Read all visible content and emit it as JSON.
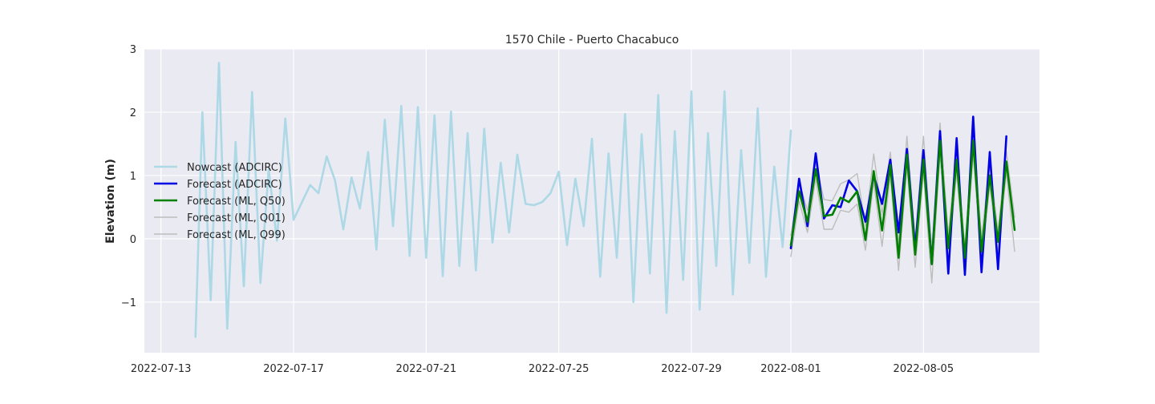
{
  "chart_data": {
    "type": "line",
    "title": "1570 Chile - Puerto Chacabuco",
    "xlabel": "",
    "ylabel": "Elevation (m)",
    "x_axis": {
      "type": "date",
      "min": "2022-07-12T12:00",
      "max": "2022-08-08T12:00",
      "ticks": [
        "2022-07-13",
        "2022-07-17",
        "2022-07-21",
        "2022-07-25",
        "2022-07-29",
        "2022-08-01",
        "2022-08-05"
      ]
    },
    "y_axis": {
      "min": -1.8,
      "max": 3.0,
      "ticks": [
        -1,
        0,
        1,
        2,
        3
      ],
      "tick_labels": [
        "−1",
        "0",
        "1",
        "2",
        "3"
      ]
    },
    "grid": true,
    "background": "#eaeaf2",
    "legend": {
      "position": "center-left"
    },
    "series": [
      {
        "name": "Nowcast (ADCIRC)",
        "color": "#add8e6",
        "width": 2.6,
        "data": [
          [
            "2022-07-14T01:00",
            -1.55
          ],
          [
            "2022-07-14T06:00",
            2.0
          ],
          [
            "2022-07-14T12:00",
            -0.97
          ],
          [
            "2022-07-14T18:00",
            2.78
          ],
          [
            "2022-07-15T00:00",
            -1.42
          ],
          [
            "2022-07-15T06:00",
            1.53
          ],
          [
            "2022-07-15T12:00",
            -0.75
          ],
          [
            "2022-07-15T18:00",
            2.32
          ],
          [
            "2022-07-16T00:00",
            -0.7
          ],
          [
            "2022-07-16T06:00",
            1.1
          ],
          [
            "2022-07-16T12:00",
            -0.03
          ],
          [
            "2022-07-16T18:00",
            1.9
          ],
          [
            "2022-07-17T00:00",
            0.3
          ],
          [
            "2022-07-17T12:00",
            0.85
          ],
          [
            "2022-07-17T18:00",
            0.72
          ],
          [
            "2022-07-18T00:00",
            1.3
          ],
          [
            "2022-07-18T06:00",
            0.92
          ],
          [
            "2022-07-18T12:00",
            0.15
          ],
          [
            "2022-07-18T18:00",
            0.97
          ],
          [
            "2022-07-19T00:00",
            0.48
          ],
          [
            "2022-07-19T06:00",
            1.37
          ],
          [
            "2022-07-19T12:00",
            -0.17
          ],
          [
            "2022-07-19T18:00",
            1.88
          ],
          [
            "2022-07-20T00:00",
            0.2
          ],
          [
            "2022-07-20T06:00",
            2.1
          ],
          [
            "2022-07-20T12:00",
            -0.27
          ],
          [
            "2022-07-20T18:00",
            2.08
          ],
          [
            "2022-07-21T00:00",
            -0.3
          ],
          [
            "2022-07-21T06:00",
            1.95
          ],
          [
            "2022-07-21T12:00",
            -0.59
          ],
          [
            "2022-07-21T18:00",
            2.01
          ],
          [
            "2022-07-22T00:00",
            -0.43
          ],
          [
            "2022-07-22T06:00",
            1.67
          ],
          [
            "2022-07-22T12:00",
            -0.5
          ],
          [
            "2022-07-22T18:00",
            1.74
          ],
          [
            "2022-07-23T00:00",
            -0.06
          ],
          [
            "2022-07-23T06:00",
            1.2
          ],
          [
            "2022-07-23T12:00",
            0.1
          ],
          [
            "2022-07-23T18:00",
            1.33
          ],
          [
            "2022-07-24T00:00",
            0.55
          ],
          [
            "2022-07-24T06:00",
            0.53
          ],
          [
            "2022-07-24T12:00",
            0.58
          ],
          [
            "2022-07-24T18:00",
            0.72
          ],
          [
            "2022-07-25T00:00",
            1.06
          ],
          [
            "2022-07-25T06:00",
            -0.1
          ],
          [
            "2022-07-25T12:00",
            0.95
          ],
          [
            "2022-07-25T18:00",
            0.2
          ],
          [
            "2022-07-26T00:00",
            1.58
          ],
          [
            "2022-07-26T06:00",
            -0.6
          ],
          [
            "2022-07-26T12:00",
            1.35
          ],
          [
            "2022-07-26T18:00",
            -0.3
          ],
          [
            "2022-07-27T00:00",
            1.97
          ],
          [
            "2022-07-27T06:00",
            -1.0
          ],
          [
            "2022-07-27T12:00",
            1.65
          ],
          [
            "2022-07-27T18:00",
            -0.55
          ],
          [
            "2022-07-28T00:00",
            2.27
          ],
          [
            "2022-07-28T06:00",
            -1.17
          ],
          [
            "2022-07-28T12:00",
            1.7
          ],
          [
            "2022-07-28T18:00",
            -0.65
          ],
          [
            "2022-07-29T00:00",
            2.33
          ],
          [
            "2022-07-29T06:00",
            -1.12
          ],
          [
            "2022-07-29T12:00",
            1.67
          ],
          [
            "2022-07-29T18:00",
            -0.43
          ],
          [
            "2022-07-30T00:00",
            2.33
          ],
          [
            "2022-07-30T06:00",
            -0.88
          ],
          [
            "2022-07-30T12:00",
            1.4
          ],
          [
            "2022-07-30T18:00",
            -0.38
          ],
          [
            "2022-07-31T00:00",
            2.06
          ],
          [
            "2022-07-31T06:00",
            -0.6
          ],
          [
            "2022-07-31T12:00",
            1.14
          ],
          [
            "2022-07-31T18:00",
            -0.13
          ],
          [
            "2022-08-01T00:00",
            1.71
          ]
        ]
      },
      {
        "name": "Forecast (ADCIRC)",
        "color": "#0000e6",
        "width": 2.6,
        "data": [
          [
            "2022-08-01T00:00",
            -0.15
          ],
          [
            "2022-08-01T06:00",
            0.95
          ],
          [
            "2022-08-01T12:00",
            0.2
          ],
          [
            "2022-08-01T18:00",
            1.35
          ],
          [
            "2022-08-02T00:00",
            0.32
          ],
          [
            "2022-08-02T06:00",
            0.53
          ],
          [
            "2022-08-02T12:00",
            0.5
          ],
          [
            "2022-08-02T18:00",
            0.92
          ],
          [
            "2022-08-03T00:00",
            0.75
          ],
          [
            "2022-08-03T06:00",
            0.27
          ],
          [
            "2022-08-03T12:00",
            1.0
          ],
          [
            "2022-08-03T18:00",
            0.55
          ],
          [
            "2022-08-04T00:00",
            1.25
          ],
          [
            "2022-08-04T06:00",
            0.1
          ],
          [
            "2022-08-04T12:00",
            1.42
          ],
          [
            "2022-08-04T18:00",
            -0.15
          ],
          [
            "2022-08-05T00:00",
            1.4
          ],
          [
            "2022-08-05T06:00",
            -0.4
          ],
          [
            "2022-08-05T12:00",
            1.7
          ],
          [
            "2022-08-05T18:00",
            -0.55
          ],
          [
            "2022-08-06T00:00",
            1.59
          ],
          [
            "2022-08-06T06:00",
            -0.57
          ],
          [
            "2022-08-06T12:00",
            1.93
          ],
          [
            "2022-08-06T18:00",
            -0.53
          ],
          [
            "2022-08-07T00:00",
            1.37
          ],
          [
            "2022-08-07T06:00",
            -0.48
          ],
          [
            "2022-08-07T12:00",
            1.62
          ]
        ]
      },
      {
        "name": "Forecast (ML, Q50)",
        "color": "#008000",
        "width": 2.6,
        "data": [
          [
            "2022-08-01T00:00",
            -0.1
          ],
          [
            "2022-08-01T06:00",
            0.75
          ],
          [
            "2022-08-01T12:00",
            0.27
          ],
          [
            "2022-08-01T18:00",
            1.1
          ],
          [
            "2022-08-02T00:00",
            0.36
          ],
          [
            "2022-08-02T06:00",
            0.38
          ],
          [
            "2022-08-02T12:00",
            0.65
          ],
          [
            "2022-08-02T18:00",
            0.58
          ],
          [
            "2022-08-03T00:00",
            0.75
          ],
          [
            "2022-08-03T06:00",
            -0.02
          ],
          [
            "2022-08-03T12:00",
            1.07
          ],
          [
            "2022-08-03T18:00",
            0.13
          ],
          [
            "2022-08-04T00:00",
            1.17
          ],
          [
            "2022-08-04T06:00",
            -0.3
          ],
          [
            "2022-08-04T12:00",
            1.33
          ],
          [
            "2022-08-04T18:00",
            -0.25
          ],
          [
            "2022-08-05T00:00",
            1.25
          ],
          [
            "2022-08-05T06:00",
            -0.4
          ],
          [
            "2022-08-05T12:00",
            1.55
          ],
          [
            "2022-08-05T18:00",
            -0.15
          ],
          [
            "2022-08-06T00:00",
            1.25
          ],
          [
            "2022-08-06T06:00",
            -0.3
          ],
          [
            "2022-08-06T12:00",
            1.55
          ],
          [
            "2022-08-06T18:00",
            -0.2
          ],
          [
            "2022-08-07T00:00",
            1.0
          ],
          [
            "2022-08-07T06:00",
            -0.05
          ],
          [
            "2022-08-07T12:00",
            1.22
          ],
          [
            "2022-08-07T18:00",
            0.14
          ]
        ]
      },
      {
        "name": "Forecast (ML, Q01)",
        "color": "#bdbdbd",
        "width": 1.4,
        "data": [
          [
            "2022-08-01T00:00",
            -0.28
          ],
          [
            "2022-08-01T06:00",
            0.6
          ],
          [
            "2022-08-01T12:00",
            0.1
          ],
          [
            "2022-08-01T18:00",
            0.95
          ],
          [
            "2022-08-02T00:00",
            0.15
          ],
          [
            "2022-08-02T06:00",
            0.15
          ],
          [
            "2022-08-02T12:00",
            0.45
          ],
          [
            "2022-08-02T18:00",
            0.42
          ],
          [
            "2022-08-03T00:00",
            0.55
          ],
          [
            "2022-08-03T06:00",
            -0.18
          ],
          [
            "2022-08-03T12:00",
            0.9
          ],
          [
            "2022-08-03T18:00",
            -0.12
          ],
          [
            "2022-08-04T00:00",
            1.0
          ],
          [
            "2022-08-04T06:00",
            -0.5
          ],
          [
            "2022-08-04T12:00",
            1.15
          ],
          [
            "2022-08-04T18:00",
            -0.45
          ],
          [
            "2022-08-05T00:00",
            1.05
          ],
          [
            "2022-08-05T06:00",
            -0.7
          ],
          [
            "2022-08-05T12:00",
            1.35
          ],
          [
            "2022-08-05T18:00",
            -0.35
          ],
          [
            "2022-08-06T00:00",
            1.05
          ],
          [
            "2022-08-06T06:00",
            -0.5
          ],
          [
            "2022-08-06T12:00",
            1.35
          ],
          [
            "2022-08-06T18:00",
            -0.4
          ],
          [
            "2022-08-07T00:00",
            0.85
          ],
          [
            "2022-08-07T06:00",
            -0.22
          ],
          [
            "2022-08-07T12:00",
            1.05
          ],
          [
            "2022-08-07T18:00",
            -0.2
          ]
        ]
      },
      {
        "name": "Forecast (ML, Q99)",
        "color": "#bdbdbd",
        "width": 1.4,
        "data": [
          [
            "2022-08-01T00:00",
            0.05
          ],
          [
            "2022-08-01T06:00",
            0.9
          ],
          [
            "2022-08-01T12:00",
            0.45
          ],
          [
            "2022-08-01T18:00",
            1.2
          ],
          [
            "2022-08-02T00:00",
            0.62
          ],
          [
            "2022-08-02T06:00",
            0.6
          ],
          [
            "2022-08-02T12:00",
            0.87
          ],
          [
            "2022-08-02T18:00",
            0.93
          ],
          [
            "2022-08-03T00:00",
            1.03
          ],
          [
            "2022-08-03T06:00",
            0.2
          ],
          [
            "2022-08-03T12:00",
            1.34
          ],
          [
            "2022-08-03T18:00",
            0.38
          ],
          [
            "2022-08-04T00:00",
            1.37
          ],
          [
            "2022-08-04T06:00",
            -0.08
          ],
          [
            "2022-08-04T12:00",
            1.62
          ],
          [
            "2022-08-04T18:00",
            -0.02
          ],
          [
            "2022-08-05T00:00",
            1.62
          ],
          [
            "2022-08-05T06:00",
            -0.18
          ],
          [
            "2022-08-05T12:00",
            1.83
          ],
          [
            "2022-08-05T18:00",
            0.05
          ],
          [
            "2022-08-06T00:00",
            1.45
          ],
          [
            "2022-08-06T06:00",
            -0.15
          ],
          [
            "2022-08-06T12:00",
            1.75
          ],
          [
            "2022-08-06T18:00",
            0.02
          ],
          [
            "2022-08-07T00:00",
            1.18
          ],
          [
            "2022-08-07T06:00",
            0.12
          ],
          [
            "2022-08-07T12:00",
            1.38
          ],
          [
            "2022-08-07T18:00",
            0.34
          ]
        ]
      }
    ]
  }
}
